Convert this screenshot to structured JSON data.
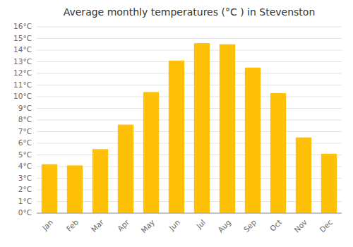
{
  "chart_data": {
    "type": "bar",
    "title": "Average monthly temperatures (°C ) in Stevenston",
    "categories": [
      "Jan",
      "Feb",
      "Mar",
      "Apr",
      "May",
      "Jun",
      "Jul",
      "Aug",
      "Sep",
      "Oct",
      "Nov",
      "Dec"
    ],
    "values": [
      4.2,
      4.1,
      5.5,
      7.6,
      10.4,
      13.1,
      14.6,
      14.5,
      12.5,
      10.3,
      6.5,
      5.1
    ],
    "color": "#FFC107",
    "ylim": [
      0,
      16
    ],
    "yticks": [
      {
        "value": 0,
        "label": "0°C"
      },
      {
        "value": 1,
        "label": "1°C"
      },
      {
        "value": 2,
        "label": "2°C"
      },
      {
        "value": 3,
        "label": "3°C"
      },
      {
        "value": 4,
        "label": "4°C"
      },
      {
        "value": 5,
        "label": "5°C"
      },
      {
        "value": 6,
        "label": "6°C"
      },
      {
        "value": 7,
        "label": "7°C"
      },
      {
        "value": 8,
        "label": "8°C"
      },
      {
        "value": 9,
        "label": "9°C"
      },
      {
        "value": 10,
        "label": "10°C"
      },
      {
        "value": 11,
        "label": "11°C"
      },
      {
        "value": 12,
        "label": "12°C"
      },
      {
        "value": 13,
        "label": "13°C"
      },
      {
        "value": 14,
        "label": "14°C"
      },
      {
        "value": 15,
        "label": "15°C"
      },
      {
        "value": 16,
        "label": "16°C"
      }
    ],
    "grid": true
  }
}
